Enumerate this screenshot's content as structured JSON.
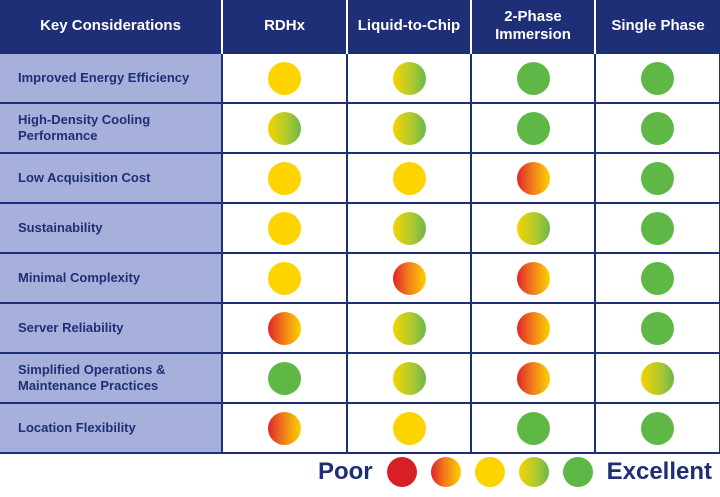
{
  "headers": [
    "Key Considerations",
    "RDHx",
    "Liquid-to-Chip",
    "2-Phase Immersion",
    "Single Phase"
  ],
  "rows": [
    {
      "label": "Improved Energy Efficiency",
      "ratings": [
        "good",
        "vgood",
        "excellent",
        "excellent"
      ]
    },
    {
      "label": "High-Density Cooling Performance",
      "ratings": [
        "vgood",
        "vgood",
        "excellent",
        "excellent"
      ]
    },
    {
      "label": "Low Acquisition Cost",
      "ratings": [
        "good",
        "good",
        "fair",
        "excellent"
      ]
    },
    {
      "label": "Sustainability",
      "ratings": [
        "good",
        "vgood",
        "vgood",
        "excellent"
      ]
    },
    {
      "label": "Minimal Complexity",
      "ratings": [
        "good",
        "fair",
        "fair",
        "excellent"
      ]
    },
    {
      "label": "Server Reliability",
      "ratings": [
        "fair",
        "vgood",
        "fair",
        "excellent"
      ]
    },
    {
      "label": "Simplified Operations & Maintenance Practices",
      "ratings": [
        "excellent",
        "vgood",
        "fair",
        "vgood"
      ]
    },
    {
      "label": "Location Flexibility",
      "ratings": [
        "fair",
        "good",
        "excellent",
        "excellent"
      ]
    }
  ],
  "legend": {
    "low_label": "Poor",
    "high_label": "Excellent",
    "scale": [
      "poor",
      "fair",
      "good",
      "vgood",
      "excellent"
    ]
  },
  "colors": {
    "header_bg": "#1e2f78",
    "label_bg": "#a7b0da",
    "poor": "#d81f26",
    "good": "#fdd300",
    "excellent": "#5fb846"
  }
}
